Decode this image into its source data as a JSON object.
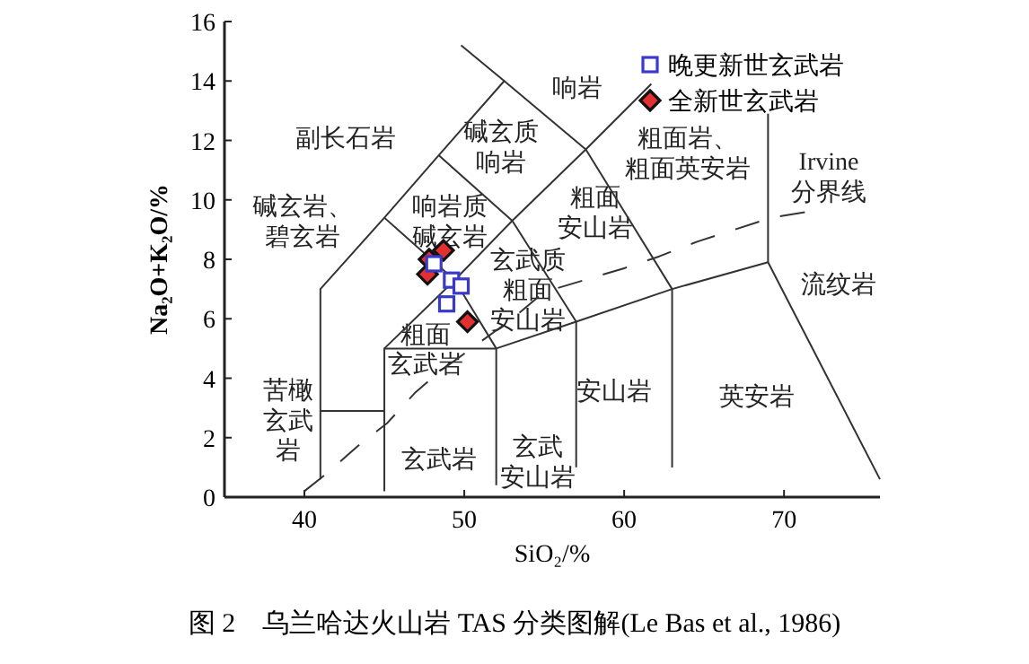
{
  "chart_data": {
    "type": "scatter",
    "xlabel": "SiO₂/%",
    "ylabel": "Na₂O+K₂O/%",
    "xlim": [
      35,
      76
    ],
    "ylim": [
      0,
      16
    ],
    "xticks": [
      40,
      50,
      60,
      70
    ],
    "yticks": [
      0,
      2,
      4,
      6,
      8,
      10,
      12,
      14,
      16
    ],
    "grid": false,
    "legend": "top right",
    "series": [
      {
        "name": "晚更新世玄武岩",
        "marker": "square",
        "color": "#3a3ac8",
        "x": [
          48.1,
          49.2,
          49.8,
          48.9
        ],
        "values": [
          7.85,
          7.3,
          7.1,
          6.5
        ]
      },
      {
        "name": "全新世玄武岩",
        "marker": "diamond",
        "color": "#e03030",
        "x": [
          47.8,
          48.7,
          47.7,
          50.2
        ],
        "values": [
          8.0,
          8.3,
          7.5,
          5.9
        ]
      },
      {
        "type": "line",
        "color": "#333333",
        "line_style": "solid",
        "x": [
          41,
          41,
          45,
          48.4,
          52.5,
          57.6,
          63,
          63
        ],
        "values": [
          0.6,
          7,
          9.4,
          11.5,
          14,
          11.7,
          7,
          1
        ]
      },
      {
        "type": "line",
        "color": "#333333",
        "line_style": "solid",
        "x": [
          45,
          45,
          52,
          52
        ],
        "values": [
          0.2,
          5,
          5,
          0.4
        ]
      },
      {
        "type": "line",
        "color": "#333333",
        "line_style": "solid",
        "x": [
          41,
          45
        ],
        "values": [
          2.9,
          2.9
        ]
      },
      {
        "type": "line",
        "color": "#333333",
        "line_style": "solid",
        "x": [
          57,
          57
        ],
        "values": [
          1,
          5.9
        ]
      },
      {
        "type": "line",
        "color": "#333333",
        "line_style": "solid",
        "x": [
          45,
          49.4,
          53,
          57.6,
          61.7
        ],
        "values": [
          5,
          7.3,
          9.3,
          11.7,
          13.9
        ]
      },
      {
        "type": "line",
        "color": "#333333",
        "line_style": "solid",
        "x": [
          52,
          49.4,
          45
        ],
        "values": [
          5,
          7.3,
          9.4
        ]
      },
      {
        "type": "line",
        "color": "#333333",
        "line_style": "solid",
        "x": [
          52,
          57,
          63,
          69,
          76
        ],
        "values": [
          5,
          5.9,
          7,
          7.9,
          0.6
        ]
      },
      {
        "type": "line",
        "color": "#333333",
        "line_style": "solid",
        "x": [
          48.4,
          53,
          57
        ],
        "values": [
          11.5,
          9.3,
          5.9
        ]
      },
      {
        "type": "line",
        "color": "#333333",
        "line_style": "solid",
        "x": [
          49.8,
          52.5
        ],
        "values": [
          15.2,
          14
        ]
      },
      {
        "type": "line",
        "color": "#333333",
        "line_style": "solid",
        "x": [
          69,
          69
        ],
        "values": [
          7.9,
          12.9
        ]
      },
      {
        "type": "line",
        "color": "#333333",
        "line_style": "dashed",
        "x": [
          40,
          41.4,
          43.3,
          45.2,
          46.9,
          48.4,
          53,
          55,
          60,
          62.2,
          64.6,
          66.9,
          69.2,
          71.5
        ],
        "values": [
          0.2,
          0.8,
          1.7,
          2.5,
          3.5,
          4.2,
          6.0,
          6.9,
          7.7,
          8.1,
          8.6,
          9.0,
          9.4,
          9.6
        ]
      }
    ],
    "annotations": [
      "副长石岩",
      "响岩",
      "碱玄质响岩",
      "粗面岩、粗面英安岩",
      "Irvine 分界线",
      "碱玄岩、碧玄岩",
      "响岩质碱玄岩",
      "粗面安山岩",
      "玄武质粗面安山岩",
      "流纹岩",
      "粗面玄武岩",
      "安山岩",
      "英安岩",
      "苦橄玄武岩",
      "玄武岩",
      "玄武安山岩",
      "图 2　乌兰哈达火山岩 TAS 分类图解(Le Bas et al., 1986)"
    ]
  }
}
